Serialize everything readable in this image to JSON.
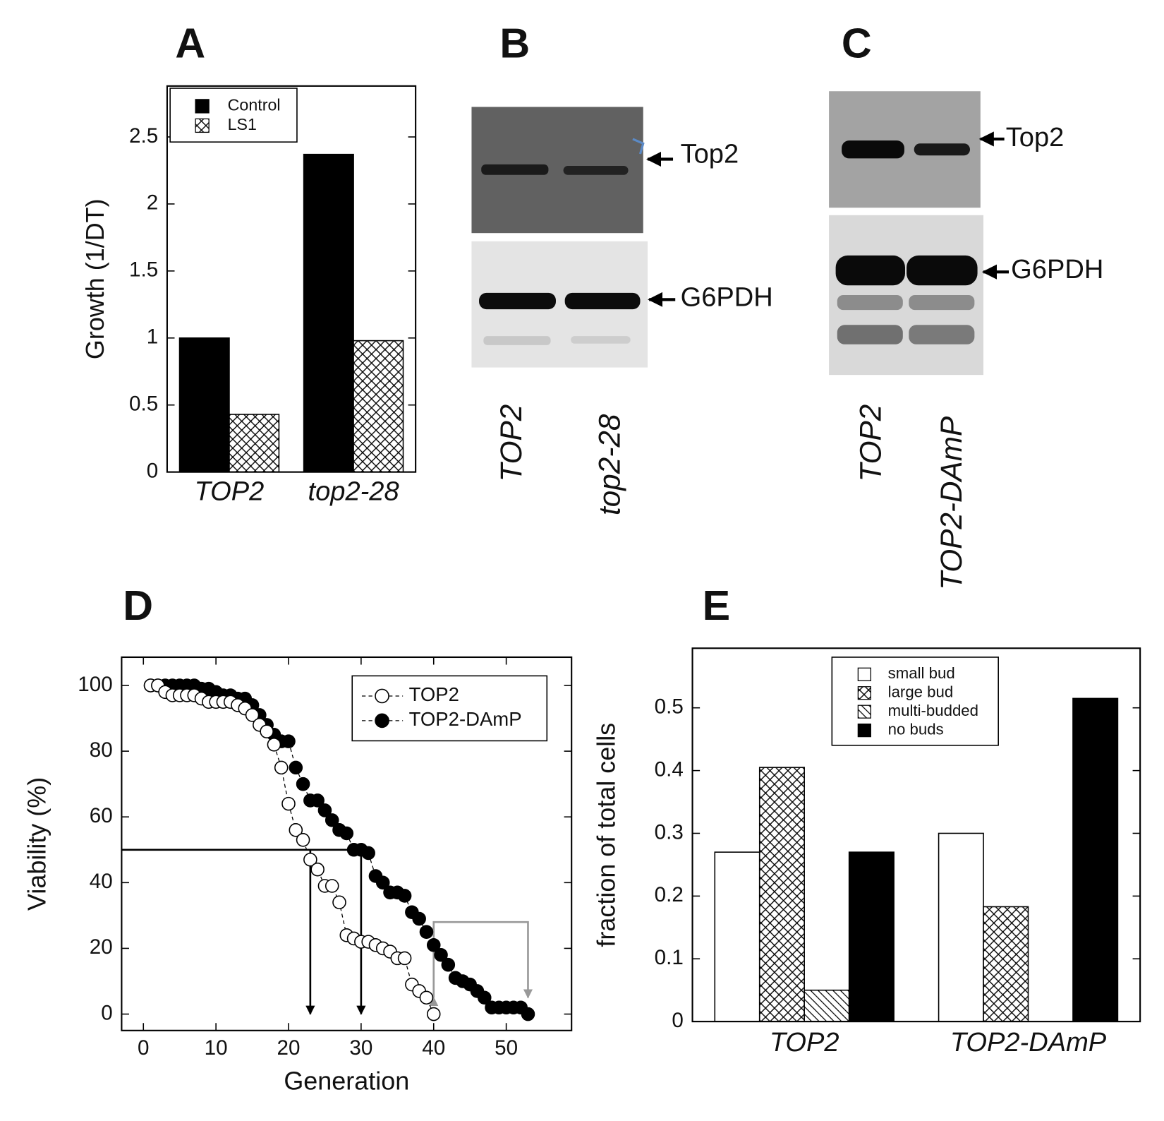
{
  "chart_data": [
    {
      "type": "bar",
      "panel": "A",
      "ylabel": "Growth (1/DT)",
      "categories": [
        "TOP2",
        "top2-28"
      ],
      "series": [
        {
          "name": "Control",
          "color": "#000000",
          "pattern": "solid",
          "values": [
            1.0,
            2.37
          ]
        },
        {
          "name": "LS1",
          "color": "#000000",
          "pattern": "crosshatch",
          "values": [
            0.43,
            0.98
          ]
        }
      ],
      "ylim": [
        0,
        2.88
      ],
      "yticks": [
        0,
        0.5,
        1,
        1.5,
        2,
        2.5
      ],
      "legend": "upper left"
    },
    {
      "type": "line",
      "panel": "D",
      "xlabel": "Generation",
      "ylabel": "Viability (%)",
      "series": [
        {
          "name": "TOP2",
          "color": "#000000",
          "marker": "open",
          "x": [
            1,
            2,
            3,
            4,
            5,
            6,
            7,
            8,
            9,
            10,
            11,
            12,
            13,
            14,
            15,
            16,
            17,
            18,
            19,
            20,
            21,
            22,
            23,
            24,
            25,
            26,
            27,
            28,
            29,
            30,
            31,
            32,
            33,
            34,
            35,
            36,
            37,
            38,
            39,
            40
          ],
          "values": [
            100,
            100,
            98,
            97,
            97,
            97,
            97,
            96,
            95,
            95,
            95,
            95,
            94,
            93,
            91,
            88,
            86,
            82,
            75,
            64,
            56,
            53,
            47,
            44,
            39,
            39,
            34,
            24,
            23,
            22,
            22,
            21,
            20,
            19,
            17,
            17,
            9,
            7,
            5,
            0
          ]
        },
        {
          "name": "TOP2-DAmP",
          "color": "#000000",
          "marker": "filled",
          "x": [
            1,
            2,
            3,
            4,
            5,
            6,
            7,
            8,
            9,
            10,
            11,
            12,
            13,
            14,
            15,
            16,
            17,
            18,
            19,
            20,
            21,
            22,
            23,
            24,
            25,
            26,
            27,
            28,
            29,
            30,
            31,
            32,
            33,
            34,
            35,
            36,
            37,
            38,
            39,
            40,
            41,
            42,
            43,
            44,
            45,
            46,
            47,
            48,
            49,
            50,
            51,
            52,
            53
          ],
          "values": [
            100,
            100,
            100,
            100,
            100,
            100,
            100,
            99,
            99,
            98,
            97,
            97,
            96,
            96,
            94,
            91,
            88,
            85,
            83,
            83,
            75,
            70,
            65,
            65,
            62,
            59,
            56,
            55,
            50,
            50,
            49,
            42,
            40,
            37,
            37,
            36,
            31,
            29,
            25,
            21,
            18,
            15,
            11,
            10,
            9,
            7,
            5,
            2,
            2,
            2,
            2,
            2,
            0
          ]
        }
      ],
      "reference": {
        "y": 50,
        "x": [
          23,
          30
        ]
      },
      "bracket": {
        "x": [
          40,
          53
        ],
        "y": 28,
        "to": 5,
        "color": "#999999"
      },
      "xlim": [
        -3,
        59
      ],
      "xticks": [
        0,
        10,
        20,
        30,
        40,
        50
      ],
      "ylim": [
        -5,
        108.6
      ],
      "yticks": [
        0,
        20,
        40,
        60,
        80,
        100
      ],
      "legend": "upper right"
    },
    {
      "type": "bar",
      "panel": "E",
      "ylabel": "fraction of total cells",
      "categories": [
        "TOP2",
        "TOP2-DAmP"
      ],
      "series": [
        {
          "name": "small bud",
          "color": "#ffffff",
          "pattern": "solid",
          "values": [
            0.27,
            0.3
          ]
        },
        {
          "name": "large bud",
          "color": "#000000",
          "pattern": "crosshatch",
          "values": [
            0.405,
            0.183
          ]
        },
        {
          "name": "multi-budded",
          "color": "#000000",
          "pattern": "diagonal",
          "values": [
            0.05,
            0
          ]
        },
        {
          "name": "no buds",
          "color": "#000000",
          "pattern": "solid",
          "values": [
            0.27,
            0.515
          ]
        }
      ],
      "ylim": [
        0,
        0.595
      ],
      "yticks": [
        0,
        0.1,
        0.2,
        0.3,
        0.4,
        0.5
      ],
      "legend": "upper center"
    }
  ],
  "blots": [
    {
      "panel": "B",
      "bands": [
        "Top2",
        "G6PDH"
      ],
      "lanes": [
        "TOP2",
        "top2-28"
      ]
    },
    {
      "panel": "C",
      "bands": [
        "Top2",
        "G6PDH"
      ],
      "lanes": [
        "TOP2",
        "TOP2-DAmP"
      ]
    }
  ]
}
